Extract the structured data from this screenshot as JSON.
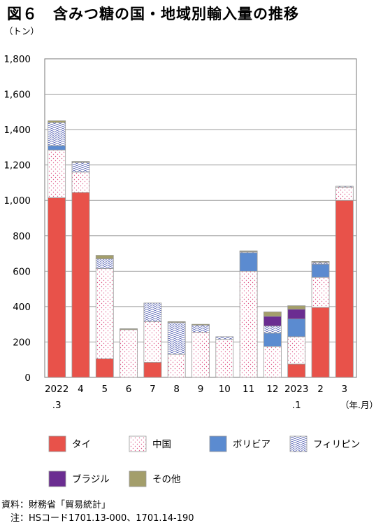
{
  "title": "図６　含みつ糖の国・地域別輸入量の推移",
  "chart_data": {
    "type": "bar",
    "stacked": true,
    "y_unit": "（トン）",
    "x_unit": "（年.月）",
    "ylim": [
      0,
      1800
    ],
    "yticks": [
      "0",
      "200",
      "400",
      "600",
      "800",
      "1,000",
      "1,200",
      "1,400",
      "1,600",
      "1,800"
    ],
    "grid": true,
    "categories": [
      {
        "line1": "2022",
        "line2": ".3"
      },
      {
        "line1": "4",
        "line2": ""
      },
      {
        "line1": "5",
        "line2": ""
      },
      {
        "line1": "6",
        "line2": ""
      },
      {
        "line1": "7",
        "line2": ""
      },
      {
        "line1": "8",
        "line2": ""
      },
      {
        "line1": "9",
        "line2": ""
      },
      {
        "line1": "10",
        "line2": ""
      },
      {
        "line1": "11",
        "line2": ""
      },
      {
        "line1": "12",
        "line2": ""
      },
      {
        "line1": "2023",
        "line2": ".1"
      },
      {
        "line1": "2",
        "line2": ""
      },
      {
        "line1": "3",
        "line2": ""
      }
    ],
    "series": [
      {
        "name": "タイ",
        "color": "#e8524a",
        "pattern": "solid",
        "values": [
          1015,
          1045,
          105,
          0,
          85,
          0,
          0,
          0,
          0,
          0,
          75,
          395,
          1000
        ]
      },
      {
        "name": "中国",
        "color": "#ffffff",
        "pattern": "dots-pink",
        "values": [
          270,
          115,
          510,
          270,
          230,
          130,
          255,
          215,
          600,
          175,
          155,
          170,
          75
        ]
      },
      {
        "name": "ボリビア",
        "color": "#5b8bd0",
        "pattern": "solid",
        "values": [
          25,
          0,
          0,
          0,
          0,
          0,
          0,
          0,
          105,
          75,
          100,
          75,
          0
        ]
      },
      {
        "name": "フィリピン",
        "color": "#ffffff",
        "pattern": "waves-blue",
        "values": [
          130,
          55,
          55,
          0,
          105,
          180,
          40,
          15,
          5,
          40,
          0,
          10,
          5
        ]
      },
      {
        "name": "ブラジル",
        "color": "#6b2d91",
        "pattern": "solid",
        "values": [
          0,
          0,
          0,
          0,
          0,
          0,
          0,
          0,
          0,
          55,
          55,
          0,
          0
        ]
      },
      {
        "name": "その他",
        "color": "#a39e6b",
        "pattern": "solid",
        "values": [
          10,
          5,
          20,
          5,
          0,
          5,
          5,
          0,
          5,
          25,
          20,
          5,
          0
        ]
      }
    ]
  },
  "notes": {
    "source": "資料：財務省「貿易統計」",
    "note": "　注：HSコード1701.13-000、1701.14-190"
  }
}
